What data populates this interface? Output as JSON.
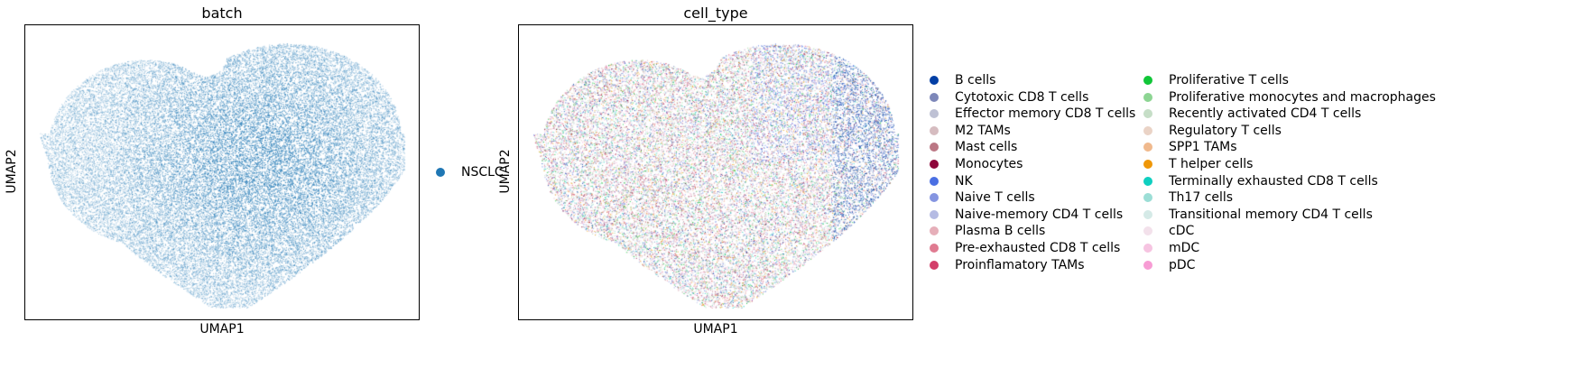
{
  "chart_data": [
    {
      "type": "scatter",
      "title": "batch",
      "xlabel": "UMAP1",
      "ylabel": "UMAP2",
      "shape": "heart",
      "legend_placement": "right",
      "legend": [
        {
          "label": "NSCLC",
          "color": "#1f77b4"
        }
      ],
      "point_color": "#1f77b4"
    },
    {
      "type": "scatter",
      "title": "cell_type",
      "xlabel": "UMAP1",
      "ylabel": "UMAP2",
      "shape": "heart",
      "legend_placement": "right",
      "legend_columns": 2,
      "legend": [
        {
          "label": "B cells",
          "color": "#023fa5"
        },
        {
          "label": "Cytotoxic CD8 T cells",
          "color": "#7d87b9"
        },
        {
          "label": "Effector memory CD8 T cells",
          "color": "#bec1d4"
        },
        {
          "label": "M2 TAMs",
          "color": "#d6bcc0"
        },
        {
          "label": "Mast cells",
          "color": "#bb7784"
        },
        {
          "label": "Monocytes",
          "color": "#8e063b"
        },
        {
          "label": "NK",
          "color": "#4a6fe3"
        },
        {
          "label": "Naive T cells",
          "color": "#8595e1"
        },
        {
          "label": "Naive-memory CD4 T cells",
          "color": "#b5bbe3"
        },
        {
          "label": "Plasma B cells",
          "color": "#e6afb9"
        },
        {
          "label": "Pre-exhausted CD8 T cells",
          "color": "#e07b91"
        },
        {
          "label": "Proinflamatory TAMs",
          "color": "#d33f6a"
        },
        {
          "label": "Proliferative T cells",
          "color": "#11c638"
        },
        {
          "label": "Proliferative monocytes and macrophages",
          "color": "#8dd593"
        },
        {
          "label": "Recently activated CD4 T cells",
          "color": "#c6dec7"
        },
        {
          "label": "Regulatory T cells",
          "color": "#ead3c6"
        },
        {
          "label": "SPP1 TAMs",
          "color": "#f0b98d"
        },
        {
          "label": "T helper cells",
          "color": "#ef9708"
        },
        {
          "label": "Terminally exhausted CD8 T cells",
          "color": "#0fcfc0"
        },
        {
          "label": "Th17 cells",
          "color": "#9cded6"
        },
        {
          "label": "Transitional memory CD4 T cells",
          "color": "#d5eae7"
        },
        {
          "label": "cDC",
          "color": "#f3e1eb"
        },
        {
          "label": "mDC",
          "color": "#f6c4e1"
        },
        {
          "label": "pDC",
          "color": "#f79cd4"
        }
      ]
    }
  ]
}
